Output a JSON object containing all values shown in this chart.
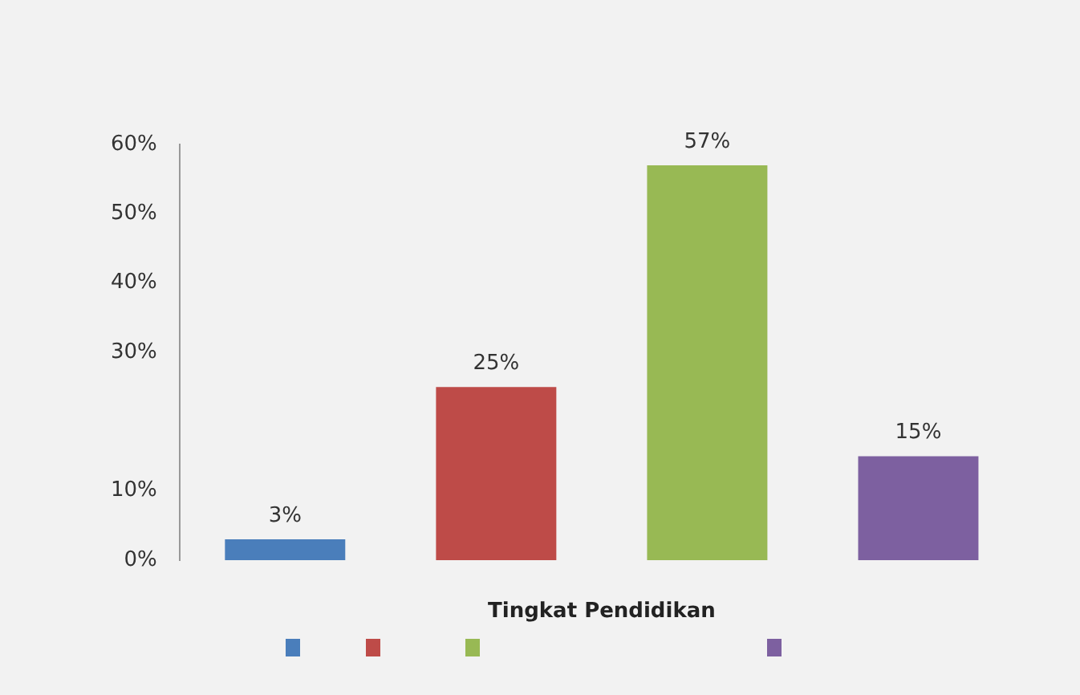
{
  "chart_data": {
    "type": "bar",
    "xlabel": "Tingkat Pendidikan",
    "categories": [
      null,
      null,
      null,
      null
    ],
    "values": [
      3,
      25,
      57,
      15
    ],
    "colors": [
      "#4a7ebb",
      "#be4b48",
      "#98b954",
      "#7d60a0"
    ],
    "value_labels": [
      "3%",
      "25%",
      "57%",
      "15%"
    ],
    "ylim": [
      0,
      60
    ],
    "yticks": [
      {
        "value": 0,
        "label": "0%"
      },
      {
        "value": 10,
        "label": "10%"
      },
      {
        "value": 30,
        "label": "30%"
      },
      {
        "value": 40,
        "label": "40%"
      },
      {
        "value": 50,
        "label": "50%"
      },
      {
        "value": 60,
        "label": "60%"
      }
    ],
    "grid": false
  }
}
